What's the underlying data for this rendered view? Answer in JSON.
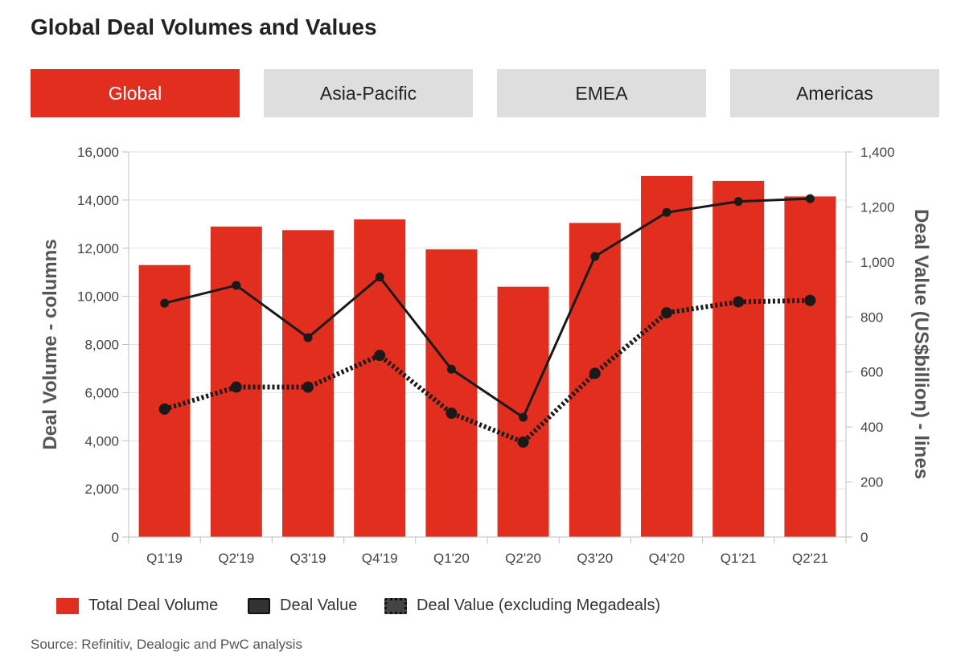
{
  "page": {
    "title": "Global Deal Volumes and Values"
  },
  "tabs": [
    {
      "label": "Global",
      "active": true
    },
    {
      "label": "Asia-Pacific",
      "active": false
    },
    {
      "label": "EMEA",
      "active": false
    },
    {
      "label": "Americas",
      "active": false
    }
  ],
  "legend": {
    "volume": "Total Deal Volume",
    "value": "Deal Value",
    "value_ex": "Deal Value (excluding Megadeals)"
  },
  "source": "Source: Refinitiv, Dealogic and PwC analysis",
  "colors": {
    "bar": "#e12e1e",
    "line": "#1a1a1a",
    "grid": "#e2e2e2",
    "axis": "#c0c0c0"
  },
  "chart_data": {
    "type": "bar",
    "categories": [
      "Q1'19",
      "Q2'19",
      "Q3'19",
      "Q4'19",
      "Q1'20",
      "Q2'20",
      "Q3'20",
      "Q4'20",
      "Q1'21",
      "Q2'21"
    ],
    "series": [
      {
        "name": "Total Deal Volume",
        "type": "bar",
        "axis": "left",
        "values": [
          11300,
          12900,
          12750,
          13200,
          11950,
          10400,
          13050,
          15000,
          14800,
          14150
        ]
      },
      {
        "name": "Deal Value",
        "type": "line",
        "axis": "right",
        "values": [
          850,
          915,
          725,
          945,
          610,
          435,
          1020,
          1180,
          1220,
          1230
        ]
      },
      {
        "name": "Deal Value (excluding Megadeals)",
        "type": "line",
        "style": "dotted",
        "axis": "right",
        "values": [
          465,
          545,
          545,
          660,
          450,
          345,
          595,
          815,
          855,
          860
        ]
      }
    ],
    "ylabel": "Deal Volume - columns",
    "y2label": "Deal Value (US$billion) - lines",
    "ylim": [
      0,
      16000
    ],
    "y2lim": [
      0,
      1400
    ],
    "yticks": [
      "0",
      "2,000",
      "4,000",
      "6,000",
      "8,000",
      "10,000",
      "12,000",
      "14,000",
      "16,000"
    ],
    "y2ticks": [
      "0",
      "200",
      "400",
      "600",
      "800",
      "1,000",
      "1,200",
      "1,400"
    ],
    "grid": true
  }
}
